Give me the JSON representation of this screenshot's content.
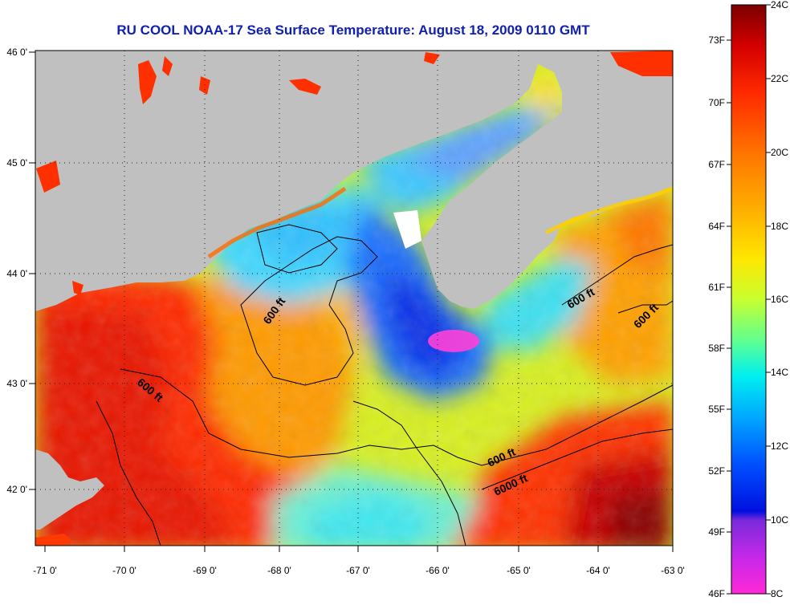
{
  "title": "RU COOL  NOAA-17  Sea Surface Temperature:  August 18, 2009 0110 GMT",
  "map": {
    "longitude_ticks": [
      "-71 0'",
      "-70 0'",
      "-69 0'",
      "-68 0'",
      "-67 0'",
      "-66 0'",
      "-65 0'",
      "-64 0'",
      "-63 0'"
    ],
    "latitude_ticks": [
      "46 0'",
      "45 0'",
      "44 0'",
      "43 0'",
      "42 0'"
    ],
    "contour_labels": [
      "600 ft",
      "600 ft",
      "600 ft",
      "600 ft",
      "600 ft",
      "6000 ft"
    ]
  },
  "colorbar": {
    "celsius_labels": [
      "24C",
      "22C",
      "20C",
      "18C",
      "16C",
      "14C",
      "12C",
      "10C",
      "8C"
    ],
    "fahrenheit_labels": [
      "73F",
      "70F",
      "67F",
      "64F",
      "61F",
      "58F",
      "55F",
      "52F",
      "49F",
      "46F"
    ],
    "colors": [
      "#7a0000",
      "#d40000",
      "#ff2a00",
      "#ff7a00",
      "#ffb000",
      "#ffe600",
      "#c8ff30",
      "#60ff90",
      "#00f0f0",
      "#00a8ff",
      "#0050ff",
      "#0010e0",
      "#7a2adc",
      "#c828e8",
      "#ff28d8"
    ]
  },
  "palette": {
    "land": "#c0c0c0",
    "title_color": "#1020b0"
  }
}
